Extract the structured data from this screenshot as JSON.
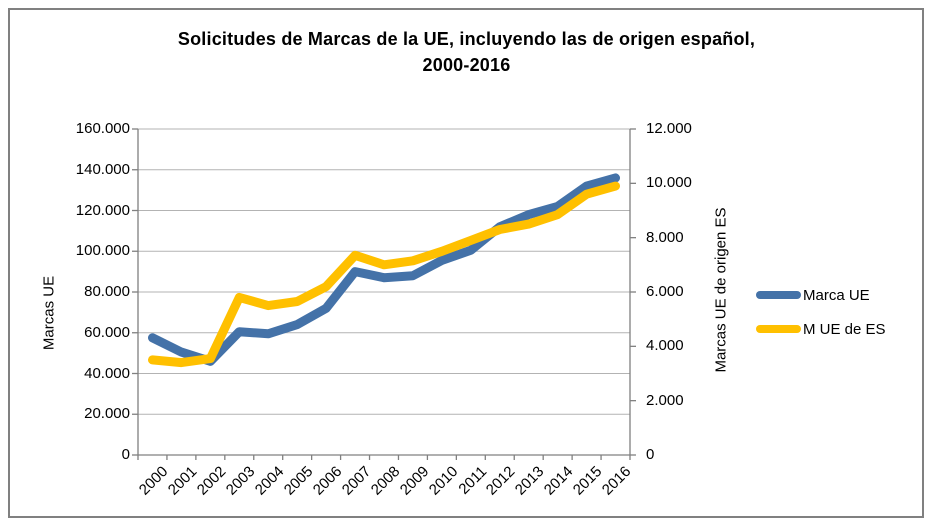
{
  "chart_data": {
    "type": "line",
    "title_line1": "Solicitudes de Marcas de la UE, incluyendo las de origen español,",
    "title_line2": "2000-2016",
    "categories": [
      "2000",
      "2001",
      "2002",
      "2003",
      "2004",
      "2005",
      "2006",
      "2007",
      "2008",
      "2009",
      "2010",
      "2011",
      "2012",
      "2013",
      "2014",
      "2015",
      "2016"
    ],
    "series": [
      {
        "name": "Marca UE",
        "axis": "left",
        "color": "#4472A8",
        "values": [
          57500,
          50500,
          46000,
          60500,
          59500,
          64000,
          72000,
          90000,
          87000,
          88000,
          95500,
          100500,
          112000,
          118000,
          122000,
          132000,
          136000
        ]
      },
      {
        "name": "M UE de ES",
        "axis": "right",
        "color": "#FFC000",
        "values": [
          3500,
          3400,
          3550,
          5800,
          5500,
          5650,
          6200,
          7350,
          7000,
          7150,
          7500,
          7900,
          8300,
          8500,
          8850,
          9600,
          9900
        ]
      }
    ],
    "left_axis": {
      "title": "Marcas UE",
      "min": 0,
      "max": 160000,
      "step": 20000,
      "tick_labels": [
        "0",
        "20.000",
        "40.000",
        "60.000",
        "80.000",
        "100.000",
        "120.000",
        "140.000",
        "160.000"
      ]
    },
    "right_axis": {
      "title": "Marcas UE de origen ES",
      "min": 0,
      "max": 12000,
      "step": 2000,
      "tick_labels": [
        "0",
        "2.000",
        "4.000",
        "6.000",
        "8.000",
        "10.000",
        "12.000"
      ]
    },
    "grid": true,
    "legend_position": "right",
    "styles": {
      "gridline_color": "#B3B3B3",
      "axis_color": "#808080",
      "text_color": "#000000",
      "background": "#FFFFFF",
      "border_color": "#808080"
    }
  }
}
